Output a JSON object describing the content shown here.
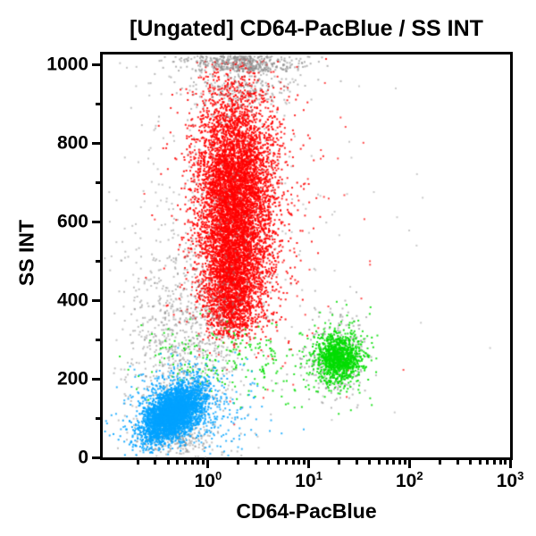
{
  "chart_data": {
    "type": "scatter",
    "title": "[Ungated] CD64-PacBlue / SS INT",
    "xlabel": "CD64-PacBlue",
    "ylabel": "SS INT",
    "x_scale": "log",
    "y_scale": "linear",
    "x_range": [
      0.09,
      1000
    ],
    "y_range": [
      0,
      1023
    ],
    "grid": false,
    "legend": false,
    "x_major_ticks": [
      {
        "value": 1,
        "base": "10",
        "exp": "0"
      },
      {
        "value": 10,
        "base": "10",
        "exp": "1"
      },
      {
        "value": 100,
        "base": "10",
        "exp": "2"
      },
      {
        "value": 1000,
        "base": "10",
        "exp": "3"
      }
    ],
    "x_minor_multipliers": [
      2,
      3,
      4,
      5,
      6,
      7,
      8,
      9
    ],
    "y_major_ticks": [
      {
        "value": 0,
        "label": "0"
      },
      {
        "value": 200,
        "label": "200"
      },
      {
        "value": 400,
        "label": "400"
      },
      {
        "value": 600,
        "label": "600"
      },
      {
        "value": 800,
        "label": "800"
      },
      {
        "value": 1000,
        "label": "1000"
      }
    ],
    "y_minor_step": 100,
    "point_colors": {
      "red": "#ff0000",
      "green": "#00dd00",
      "blue": "#00a2ff",
      "gray": "#8a8a8a"
    },
    "populations": [
      {
        "name": "red-population-core",
        "color": "red",
        "n": 6000,
        "cx": 0.27,
        "sx": 0.19,
        "cy": 645,
        "sy": 150,
        "clip_y": [
          330,
          1008
        ],
        "alpha": 0.9
      },
      {
        "name": "red-population-lower-tail",
        "color": "red",
        "n": 1400,
        "cx": 0.22,
        "sx": 0.12,
        "cy": 425,
        "sy": 85,
        "clip_y": [
          300,
          650
        ],
        "alpha": 0.9
      },
      {
        "name": "red-population-halo",
        "color": "red",
        "n": 1000,
        "cx": 0.28,
        "sx": 0.3,
        "cy": 630,
        "sy": 230,
        "clip_y": [
          250,
          1015
        ],
        "alpha": 0.85
      },
      {
        "name": "red-sparse-scatter",
        "color": "red",
        "n": 70,
        "cx": 0.5,
        "sx": 0.65,
        "cy": 480,
        "sy": 290,
        "clip_y": [
          30,
          1015
        ],
        "alpha": 0.7
      },
      {
        "name": "gray-top-pileup-band",
        "color": "gray",
        "n": 430,
        "cx": 0.33,
        "sx": 0.3,
        "y_band": [
          982,
          1022
        ],
        "alpha": 0.65
      },
      {
        "name": "gray-top-pileup-fringe",
        "color": "gray",
        "n": 230,
        "cx": 0.35,
        "sx": 0.3,
        "cy": 950,
        "sy": 35,
        "clip_y": [
          850,
          1022
        ],
        "alpha": 0.6
      },
      {
        "name": "gray-debris-streak",
        "color": "gray",
        "n": 800,
        "cx": -0.28,
        "sx": 0.28,
        "cy": 290,
        "sy": 140,
        "clip_y": [
          0,
          1023
        ],
        "alpha": 0.55
      },
      {
        "name": "gray-debris-broad",
        "color": "gray",
        "n": 420,
        "cx": 0.0,
        "sx": 0.5,
        "cy": 520,
        "sy": 290,
        "clip_y": [
          0,
          1023
        ],
        "alpha": 0.5
      },
      {
        "name": "gray-debris-low",
        "color": "gray",
        "n": 170,
        "cx": -0.32,
        "sx": 0.2,
        "cy": 38,
        "sy": 20,
        "clip_y": [
          0,
          120
        ],
        "alpha": 0.55
      },
      {
        "name": "gray-around-green-cluster",
        "color": "gray",
        "n": 270,
        "cx": 1.27,
        "sx": 0.17,
        "cy": 252,
        "sy": 55,
        "clip_y": [
          80,
          430
        ],
        "alpha": 0.6
      },
      {
        "name": "gray-wide-sparse",
        "color": "gray",
        "n": 50,
        "cx": 0.9,
        "sx": 0.8,
        "cy": 550,
        "sy": 320,
        "clip_y": [
          0,
          1023
        ],
        "alpha": 0.45
      },
      {
        "name": "green-population-core",
        "color": "green",
        "n": 950,
        "cx": 1.3,
        "sx": 0.11,
        "cy": 252,
        "sy": 30,
        "clip_y": [
          120,
          400
        ],
        "alpha": 0.9
      },
      {
        "name": "green-population-halo",
        "color": "green",
        "n": 200,
        "cx": 1.28,
        "sx": 0.17,
        "cy": 250,
        "sy": 52,
        "clip_y": [
          90,
          430
        ],
        "alpha": 0.85
      },
      {
        "name": "green-left-scatter",
        "color": "green",
        "n": 230,
        "cx": 0.25,
        "sx": 0.5,
        "cy": 245,
        "sy": 48,
        "clip_y": [
          110,
          390
        ],
        "alpha": 0.85
      },
      {
        "name": "blue-population-core",
        "color": "blue",
        "n": 3400,
        "cx": -0.35,
        "sx": 0.15,
        "cy": 113,
        "sy": 32,
        "slope": 120,
        "clip_y": [
          5,
          260
        ],
        "alpha": 0.9
      },
      {
        "name": "blue-population-halo",
        "color": "blue",
        "n": 480,
        "cx": -0.22,
        "sx": 0.33,
        "cy": 125,
        "sy": 62,
        "clip_y": [
          2,
          330
        ],
        "alpha": 0.8
      }
    ]
  }
}
